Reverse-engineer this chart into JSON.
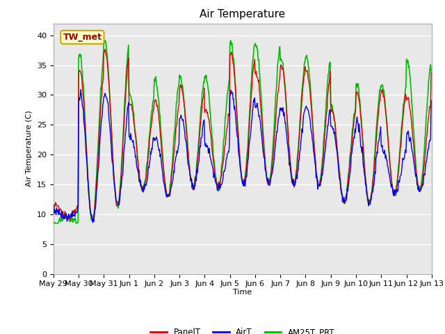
{
  "title": "Air Temperature",
  "ylabel": "Air Temperature (C)",
  "xlabel": "Time",
  "ylim": [
    0,
    42
  ],
  "yticks": [
    0,
    5,
    10,
    15,
    20,
    25,
    30,
    35,
    40
  ],
  "fig_bg_color": "#ffffff",
  "plot_bg_color": "#e8e8e8",
  "grid_color": "#ffffff",
  "annotation_text": "TW_met",
  "annotation_bg": "#ffffcc",
  "annotation_border": "#ccaa00",
  "annotation_text_color": "#990000",
  "line_colors": {
    "PanelT": "#dd0000",
    "AirT": "#0000ee",
    "AM25T_PRT": "#00bb00"
  },
  "line_widths": {
    "PanelT": 1.0,
    "AirT": 1.0,
    "AM25T_PRT": 1.2
  },
  "legend_labels": [
    "PanelT",
    "AirT",
    "AM25T_PRT"
  ],
  "n_days": 15,
  "pts_per_day": 48,
  "xtick_labels": [
    "May 29",
    "May 30",
    "May 31",
    "Jun 1",
    "Jun 2",
    "Jun 3",
    "Jun 4",
    "Jun 5",
    "Jun 6",
    "Jun 7",
    "Jun 8",
    "Jun 9",
    "Jun 10",
    "Jun 11",
    "Jun 12",
    "Jun 13"
  ],
  "xtick_positions": [
    0,
    48,
    96,
    144,
    192,
    240,
    288,
    336,
    384,
    432,
    480,
    528,
    576,
    624,
    672,
    720
  ],
  "title_fontsize": 11,
  "axis_label_fontsize": 8,
  "tick_fontsize": 8
}
